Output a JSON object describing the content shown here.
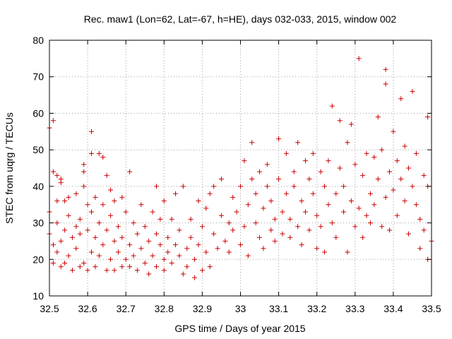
{
  "chart_data": {
    "type": "scatter",
    "title": "Rec. maw1 (Lon=62, Lat=-67, h=HE), days 032-033, 2015, window 002",
    "xlabel": "GPS time / Days of year 2015",
    "ylabel": "STEC from uqrg / TECUs",
    "xlim": [
      32.5,
      33.5
    ],
    "ylim": [
      10,
      80
    ],
    "x_ticks": [
      "32.5",
      "32.6",
      "32.7",
      "32.8",
      "32.9",
      "33",
      "33.1",
      "33.2",
      "33.3",
      "33.4",
      "33.5"
    ],
    "y_ticks": [
      "10",
      "20",
      "30",
      "40",
      "50",
      "60",
      "70",
      "80"
    ],
    "grid": true,
    "marker": "+",
    "color": "#cc0000",
    "points": [
      [
        32.5,
        27
      ],
      [
        32.5,
        33
      ],
      [
        32.5,
        56
      ],
      [
        32.51,
        58
      ],
      [
        32.51,
        19
      ],
      [
        32.51,
        24
      ],
      [
        32.51,
        44
      ],
      [
        32.52,
        43
      ],
      [
        32.52,
        36
      ],
      [
        32.52,
        30
      ],
      [
        32.52,
        22
      ],
      [
        32.53,
        18
      ],
      [
        32.53,
        25
      ],
      [
        32.53,
        41
      ],
      [
        32.53,
        42
      ],
      [
        32.54,
        36
      ],
      [
        32.54,
        28
      ],
      [
        32.54,
        19
      ],
      [
        32.55,
        32
      ],
      [
        32.55,
        37
      ],
      [
        32.55,
        21
      ],
      [
        32.56,
        26
      ],
      [
        32.56,
        17
      ],
      [
        32.57,
        38
      ],
      [
        32.57,
        29
      ],
      [
        32.57,
        23
      ],
      [
        32.58,
        18
      ],
      [
        32.58,
        27
      ],
      [
        32.58,
        31
      ],
      [
        32.59,
        40
      ],
      [
        32.59,
        19
      ],
      [
        32.59,
        46
      ],
      [
        32.59,
        44
      ],
      [
        32.6,
        28
      ],
      [
        32.6,
        35
      ],
      [
        32.6,
        17
      ],
      [
        32.61,
        55
      ],
      [
        32.61,
        49
      ],
      [
        32.61,
        22
      ],
      [
        32.61,
        33
      ],
      [
        32.62,
        37
      ],
      [
        32.62,
        26
      ],
      [
        32.62,
        18
      ],
      [
        32.63,
        49
      ],
      [
        32.63,
        30
      ],
      [
        32.63,
        21
      ],
      [
        32.64,
        48
      ],
      [
        32.64,
        35
      ],
      [
        32.64,
        24
      ],
      [
        32.65,
        17
      ],
      [
        32.65,
        43
      ],
      [
        32.65,
        28
      ],
      [
        32.66,
        39
      ],
      [
        32.66,
        20
      ],
      [
        32.66,
        32
      ],
      [
        32.67,
        25
      ],
      [
        32.67,
        17
      ],
      [
        32.67,
        36
      ],
      [
        32.68,
        22
      ],
      [
        32.68,
        29
      ],
      [
        32.69,
        18
      ],
      [
        32.69,
        37
      ],
      [
        32.69,
        26
      ],
      [
        32.7,
        20
      ],
      [
        32.7,
        33
      ],
      [
        32.71,
        44
      ],
      [
        32.71,
        24
      ],
      [
        32.71,
        18
      ],
      [
        32.72,
        30
      ],
      [
        32.72,
        21
      ],
      [
        32.73,
        27
      ],
      [
        32.73,
        17
      ],
      [
        32.74,
        35
      ],
      [
        32.74,
        23
      ],
      [
        32.75,
        19
      ],
      [
        32.75,
        29
      ],
      [
        32.76,
        25
      ],
      [
        32.76,
        16
      ],
      [
        32.77,
        33
      ],
      [
        32.77,
        21
      ],
      [
        32.78,
        40
      ],
      [
        32.78,
        27
      ],
      [
        32.78,
        18
      ],
      [
        32.79,
        24
      ],
      [
        32.79,
        31
      ],
      [
        32.8,
        20
      ],
      [
        32.8,
        36
      ],
      [
        32.8,
        17
      ],
      [
        32.81,
        26
      ],
      [
        32.81,
        22
      ],
      [
        32.82,
        31
      ],
      [
        32.82,
        19
      ],
      [
        32.83,
        38
      ],
      [
        32.83,
        24
      ],
      [
        32.84,
        21
      ],
      [
        32.84,
        28
      ],
      [
        32.85,
        16
      ],
      [
        32.85,
        40
      ],
      [
        32.86,
        23
      ],
      [
        32.86,
        18
      ],
      [
        32.87,
        26
      ],
      [
        32.87,
        31
      ],
      [
        32.88,
        15
      ],
      [
        32.88,
        20
      ],
      [
        32.89,
        36
      ],
      [
        32.89,
        24
      ],
      [
        32.9,
        29
      ],
      [
        32.9,
        17
      ],
      [
        32.91,
        34
      ],
      [
        32.91,
        22
      ],
      [
        32.92,
        38
      ],
      [
        32.92,
        18
      ],
      [
        32.93,
        27
      ],
      [
        32.93,
        40
      ],
      [
        32.94,
        23
      ],
      [
        32.95,
        32
      ],
      [
        32.95,
        42
      ],
      [
        32.96,
        25
      ],
      [
        32.97,
        30
      ],
      [
        32.97,
        22
      ],
      [
        32.98,
        37
      ],
      [
        32.98,
        28
      ],
      [
        32.99,
        33
      ],
      [
        33.0,
        24
      ],
      [
        33.0,
        40
      ],
      [
        33.01,
        29
      ],
      [
        33.01,
        47
      ],
      [
        33.02,
        35
      ],
      [
        33.02,
        21
      ],
      [
        33.03,
        42
      ],
      [
        33.03,
        52
      ],
      [
        33.04,
        30
      ],
      [
        33.04,
        38
      ],
      [
        33.05,
        26
      ],
      [
        33.05,
        44
      ],
      [
        33.06,
        34
      ],
      [
        33.06,
        23
      ],
      [
        33.07,
        40
      ],
      [
        33.07,
        46
      ],
      [
        33.08,
        28
      ],
      [
        33.08,
        36
      ],
      [
        33.09,
        31
      ],
      [
        33.09,
        25
      ],
      [
        33.1,
        42
      ],
      [
        33.1,
        53
      ],
      [
        33.11,
        33
      ],
      [
        33.11,
        27
      ],
      [
        33.12,
        38
      ],
      [
        33.12,
        49
      ],
      [
        33.13,
        31
      ],
      [
        33.13,
        26
      ],
      [
        33.14,
        44
      ],
      [
        33.14,
        40
      ],
      [
        33.15,
        29
      ],
      [
        33.15,
        52
      ],
      [
        33.16,
        36
      ],
      [
        33.16,
        24
      ],
      [
        33.17,
        47
      ],
      [
        33.17,
        33
      ],
      [
        33.18,
        42
      ],
      [
        33.18,
        28
      ],
      [
        33.19,
        49
      ],
      [
        33.19,
        38
      ],
      [
        33.2,
        23
      ],
      [
        33.2,
        32
      ],
      [
        33.21,
        44
      ],
      [
        33.21,
        29
      ],
      [
        33.22,
        40
      ],
      [
        33.22,
        22
      ],
      [
        33.23,
        35
      ],
      [
        33.23,
        47
      ],
      [
        33.24,
        30
      ],
      [
        33.24,
        62
      ],
      [
        33.25,
        38
      ],
      [
        33.25,
        26
      ],
      [
        33.26,
        45
      ],
      [
        33.26,
        58
      ],
      [
        33.27,
        33
      ],
      [
        33.27,
        40
      ],
      [
        33.28,
        52
      ],
      [
        33.28,
        22
      ],
      [
        33.29,
        57
      ],
      [
        33.29,
        36
      ],
      [
        33.3,
        29
      ],
      [
        33.3,
        46
      ],
      [
        33.31,
        75
      ],
      [
        33.31,
        34
      ],
      [
        33.32,
        43
      ],
      [
        33.32,
        26
      ],
      [
        33.33,
        49
      ],
      [
        33.33,
        32
      ],
      [
        33.34,
        38
      ],
      [
        33.34,
        30
      ],
      [
        33.35,
        48
      ],
      [
        33.35,
        35
      ],
      [
        33.36,
        59
      ],
      [
        33.36,
        42
      ],
      [
        33.37,
        29
      ],
      [
        33.37,
        50
      ],
      [
        33.38,
        37
      ],
      [
        33.38,
        72
      ],
      [
        33.38,
        68
      ],
      [
        33.39,
        44
      ],
      [
        33.39,
        28
      ],
      [
        33.4,
        55
      ],
      [
        33.4,
        39
      ],
      [
        33.41,
        47
      ],
      [
        33.41,
        32
      ],
      [
        33.42,
        64
      ],
      [
        33.42,
        42
      ],
      [
        33.43,
        36
      ],
      [
        33.43,
        51
      ],
      [
        33.44,
        45
      ],
      [
        33.44,
        27
      ],
      [
        33.45,
        40
      ],
      [
        33.45,
        66
      ],
      [
        33.46,
        35
      ],
      [
        33.46,
        49
      ],
      [
        33.47,
        31
      ],
      [
        33.47,
        23
      ],
      [
        33.48,
        43
      ],
      [
        33.48,
        28
      ],
      [
        33.49,
        59
      ],
      [
        33.49,
        40
      ],
      [
        33.49,
        20
      ],
      [
        33.5,
        25
      ]
    ]
  }
}
